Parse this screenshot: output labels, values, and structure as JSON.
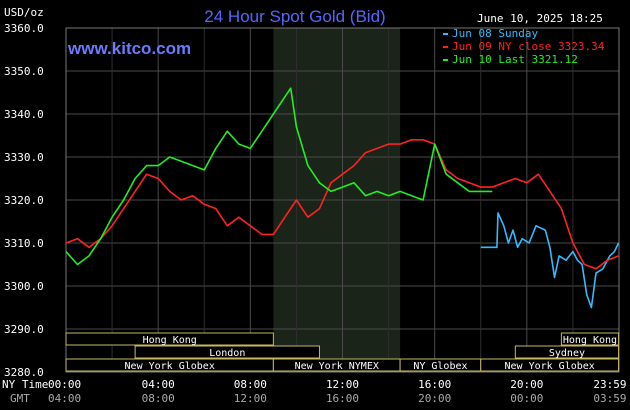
{
  "header": {
    "title": "24 Hour Spot Gold (Bid)",
    "timestamp": "June 10, 2025 18:25",
    "unit_label": "USD/oz",
    "site": "www.kitco.com"
  },
  "axis_labels": {
    "ny_time": "NY Time",
    "gmt": "GMT"
  },
  "chart_data": {
    "type": "line",
    "title": "24 Hour Spot Gold (Bid)",
    "ylim": [
      3280,
      3360
    ],
    "yticks": [
      "3360.0",
      "3350.0",
      "3340.0",
      "3330.0",
      "3320.0",
      "3310.0",
      "3300.0",
      "3290.0",
      "3280.0"
    ],
    "xlim": [
      0,
      24
    ],
    "xticks_ny": [
      "00:00",
      "04:00",
      "08:00",
      "12:00",
      "16:00",
      "20:00",
      "23:59"
    ],
    "xticks_gmt": [
      "04:00",
      "08:00",
      "12:00",
      "16:00",
      "20:00",
      "00:00",
      "03:59"
    ],
    "grid": true,
    "legend_position": "top-right",
    "highlight_band": [
      9,
      14.5
    ],
    "series": [
      {
        "name": "Jun 08 Sunday",
        "color": "#33bbff",
        "x": [
          18.0,
          18.7,
          18.75,
          19.0,
          19.2,
          19.4,
          19.6,
          19.8,
          20.1,
          20.4,
          20.8,
          21.0,
          21.2,
          21.4,
          21.7,
          22.0,
          22.2,
          22.4,
          22.6,
          22.8,
          23.0,
          23.3,
          23.6,
          23.8,
          23.98
        ],
        "y": [
          3309.0,
          3309.0,
          3317.0,
          3314.0,
          3310.0,
          3313.0,
          3309.0,
          3311.0,
          3310.0,
          3314.0,
          3313.0,
          3309.0,
          3302.0,
          3307.0,
          3306.0,
          3308.0,
          3306.0,
          3305.0,
          3298.0,
          3295.0,
          3303.0,
          3304.0,
          3307.0,
          3308.0,
          3310.0
        ]
      },
      {
        "name": "Jun 09 NY close 3323.34",
        "color": "#ff2222",
        "x": [
          0,
          0.5,
          1.0,
          1.5,
          2.0,
          2.5,
          3.0,
          3.5,
          4.0,
          4.5,
          5.0,
          5.5,
          6.0,
          6.5,
          7.0,
          7.5,
          8.0,
          8.5,
          9.0,
          9.5,
          10.0,
          10.5,
          11.0,
          11.5,
          12.0,
          12.5,
          13.0,
          13.5,
          14.0,
          14.5,
          15.0,
          15.5,
          16.0,
          16.5,
          17.0,
          17.5,
          18.0,
          18.5,
          19.0,
          19.5,
          20.0,
          20.5,
          21.0,
          21.5,
          22.0,
          22.5,
          23.0,
          23.5,
          23.98
        ],
        "y": [
          3310.0,
          3311.0,
          3309.0,
          3311.0,
          3314.0,
          3318.0,
          3322.0,
          3326.0,
          3325.0,
          3322.0,
          3320.0,
          3321.0,
          3319.0,
          3318.0,
          3314.0,
          3316.0,
          3314.0,
          3312.0,
          3312.0,
          3316.0,
          3320.0,
          3316.0,
          3318.0,
          3324.0,
          3326.0,
          3328.0,
          3331.0,
          3332.0,
          3333.0,
          3333.0,
          3334.0,
          3334.0,
          3333.0,
          3327.0,
          3325.0,
          3324.0,
          3323.0,
          3323.0,
          3324.0,
          3325.0,
          3324.0,
          3326.0,
          3322.0,
          3318.0,
          3310.0,
          3305.0,
          3304.0,
          3306.0,
          3307.0
        ]
      },
      {
        "name": "Jun 10 Last 3321.12",
        "color": "#22ee22",
        "x": [
          0,
          0.5,
          1.0,
          1.5,
          2.0,
          2.5,
          3.0,
          3.5,
          4.0,
          4.5,
          5.0,
          5.5,
          6.0,
          6.5,
          7.0,
          7.5,
          8.0,
          8.5,
          9.0,
          9.5,
          9.75,
          10.0,
          10.5,
          11.0,
          11.5,
          12.0,
          12.5,
          13.0,
          13.5,
          14.0,
          14.5,
          15.0,
          15.5,
          16.0,
          16.5,
          17.0,
          17.5,
          18.0,
          18.5
        ],
        "y": [
          3308.0,
          3305.0,
          3307.0,
          3311.0,
          3316.0,
          3320.0,
          3325.0,
          3328.0,
          3328.0,
          3330.0,
          3329.0,
          3328.0,
          3327.0,
          3332.0,
          3336.0,
          3333.0,
          3332.0,
          3336.0,
          3340.0,
          3344.0,
          3346.0,
          3337.0,
          3328.0,
          3324.0,
          3322.0,
          3323.0,
          3324.0,
          3321.0,
          3322.0,
          3321.0,
          3322.0,
          3321.0,
          3320.0,
          3333.0,
          3326.0,
          3324.0,
          3322.0,
          3322.0,
          3322.0
        ]
      }
    ]
  },
  "legend": [
    {
      "label": "Jun 08 Sunday",
      "color": "#33bbff"
    },
    {
      "label": "Jun 09 NY close 3323.34",
      "color": "#ff2222"
    },
    {
      "label": "Jun 10 Last 3321.12",
      "color": "#22ee22"
    }
  ],
  "sessions": [
    {
      "label": "Hong Kong",
      "start": 0,
      "end": 9.0,
      "row": 0
    },
    {
      "label": "London",
      "start": 3.0,
      "end": 11.0,
      "row": 1
    },
    {
      "label": "New York Globex",
      "start": 0,
      "end": 9.0,
      "row": 2
    },
    {
      "label": "New York NYMEX",
      "start": 9.0,
      "end": 14.5,
      "row": 2
    },
    {
      "label": "NY Globex",
      "start": 14.5,
      "end": 18.0,
      "row": 2
    },
    {
      "label": "Hong Kong",
      "start": 21.5,
      "end": 23.98,
      "row": 0
    },
    {
      "label": "Sydney",
      "start": 19.5,
      "end": 23.98,
      "row": 1
    },
    {
      "label": "New York Globex",
      "start": 18.0,
      "end": 23.98,
      "row": 2
    }
  ]
}
